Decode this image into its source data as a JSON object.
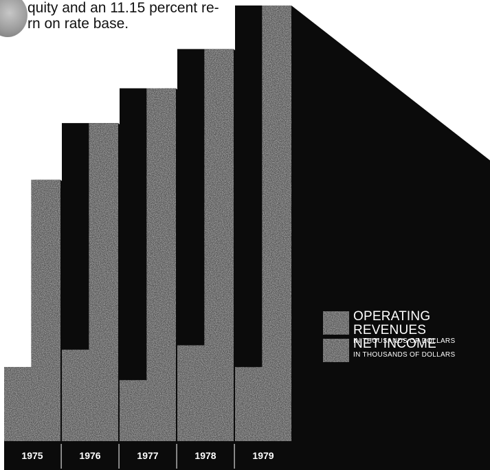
{
  "page": {
    "intro_lines": [
      "quity and an 11.15 percent re-",
      "rn on rate base."
    ]
  },
  "colors": {
    "ink": "#0b0b0b",
    "bar_fill": "#5a5a5a",
    "label_text": "#ffffff"
  },
  "chart_data": {
    "type": "bar",
    "categories": [
      "1975",
      "1976",
      "1977",
      "1978",
      "1979"
    ],
    "series": [
      {
        "name": "OPERATING REVENUES",
        "unit": "IN THOUSANDS OF DOLLARS",
        "values": [
          0.6,
          0.73,
          0.81,
          0.9,
          1.0
        ]
      },
      {
        "name": "NET INCOME",
        "unit": "IN THOUSANDS OF DOLLARS",
        "values": [
          0.17,
          0.21,
          0.14,
          0.22,
          0.17
        ]
      }
    ],
    "ylim": [
      0,
      1
    ],
    "grid": false,
    "legend": "right"
  }
}
